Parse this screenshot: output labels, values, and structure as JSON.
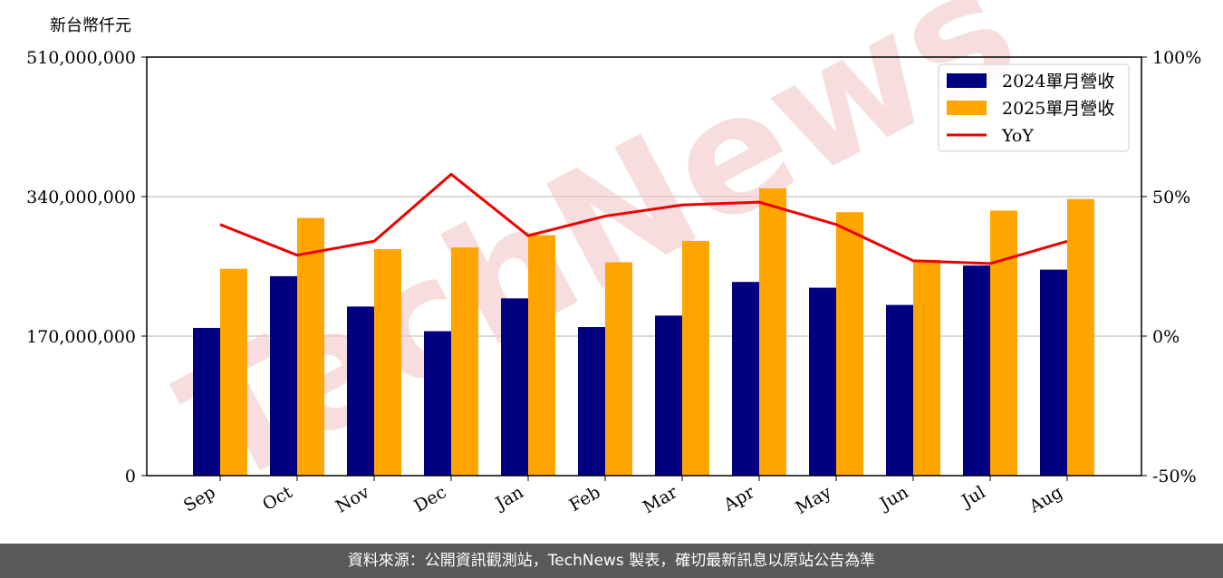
{
  "unit_label": "新台幣仟元",
  "watermark": "TechNews",
  "footer": "資料來源：公開資訊觀測站，TechNews 製表，確切最新訊息以原站公告為準",
  "colors": {
    "bar2024": "#000080",
    "bar2025": "#ffa500",
    "yoy": "#ee0000",
    "grid": "#cccccc",
    "watermark": "#f2c7c7"
  },
  "chart_data": {
    "type": "bar",
    "categories": [
      "Sep",
      "Oct",
      "Nov",
      "Dec",
      "Jan",
      "Feb",
      "Mar",
      "Apr",
      "May",
      "Jun",
      "Jul",
      "Aug"
    ],
    "series": [
      {
        "name": "2024單月營收",
        "type": "bar",
        "axis": "left",
        "values": [
          180000000,
          243000000,
          206000000,
          176000000,
          216000000,
          181000000,
          195000000,
          236000000,
          229000000,
          208000000,
          256000000,
          251000000
        ]
      },
      {
        "name": "2025單月營收",
        "type": "bar",
        "axis": "left",
        "values": [
          252000000,
          314000000,
          276000000,
          278000000,
          293000000,
          260000000,
          286000000,
          350000000,
          321000000,
          263000000,
          323000000,
          337000000
        ]
      },
      {
        "name": "YoY",
        "type": "line",
        "axis": "right",
        "values": [
          40,
          29,
          34,
          58,
          36,
          43,
          47,
          48,
          40,
          27,
          26,
          34
        ]
      }
    ],
    "y_left": {
      "ylim": [
        0,
        510000000
      ],
      "ticks": [
        "0",
        "170,000,000",
        "340,000,000",
        "510,000,000"
      ]
    },
    "y_right": {
      "ylim": [
        -50,
        100
      ],
      "ticks": [
        "-50%",
        "0%",
        "50%",
        "100%"
      ]
    },
    "grid": true,
    "legend": "top-right"
  }
}
